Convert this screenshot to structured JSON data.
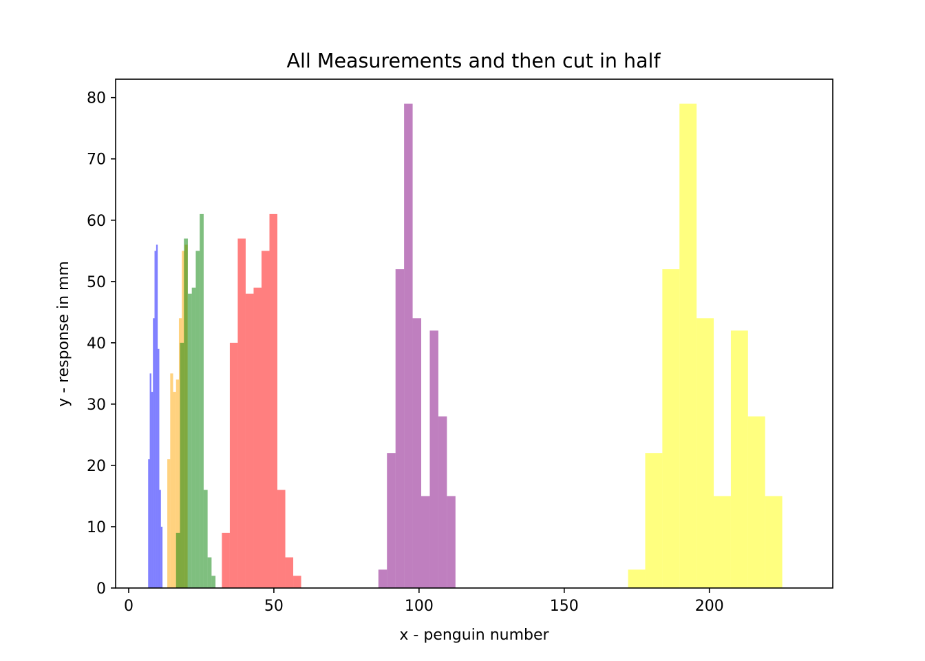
{
  "chart_data": {
    "type": "bar",
    "title": "All Measurements and then cut in half",
    "xlabel": "x - penguin number",
    "ylabel": "y - response in mm",
    "xlim": [
      -4.5,
      242.5
    ],
    "ylim": [
      0,
      83
    ],
    "xticks": [
      0,
      50,
      100,
      150,
      200
    ],
    "yticks": [
      0,
      10,
      20,
      30,
      40,
      50,
      60,
      70,
      80
    ],
    "grid": false,
    "legend": "none",
    "series": [
      {
        "color": "#0000ff",
        "opacity": 0.5,
        "bin_start": 6.7,
        "bin_width": 0.55,
        "counts": [
          21,
          35,
          32,
          44,
          55,
          56,
          39,
          16,
          10
        ]
      },
      {
        "color": "#ffa500",
        "opacity": 0.5,
        "bin_start": 13.3,
        "bin_width": 1.0,
        "counts": [
          21,
          35,
          32,
          34,
          44,
          55,
          56
        ]
      },
      {
        "color": "#008000",
        "opacity": 0.5,
        "bin_start": 16.3,
        "bin_width": 1.36,
        "counts": [
          9,
          40,
          57,
          48,
          49,
          55,
          61,
          16,
          5,
          2
        ]
      },
      {
        "color": "#ff0000",
        "opacity": 0.5,
        "bin_start": 32.1,
        "bin_width": 2.73,
        "counts": [
          9,
          40,
          57,
          48,
          49,
          55,
          61,
          16,
          5,
          2
        ]
      },
      {
        "color": "#800080",
        "opacity": 0.5,
        "bin_start": 86.0,
        "bin_width": 2.95,
        "counts": [
          3,
          22,
          52,
          79,
          44,
          15,
          42,
          28,
          15
        ]
      },
      {
        "color": "#ffff00",
        "opacity": 0.5,
        "bin_start": 172.0,
        "bin_width": 5.9,
        "counts": [
          3,
          22,
          52,
          79,
          44,
          15,
          42,
          28,
          15
        ]
      }
    ]
  }
}
